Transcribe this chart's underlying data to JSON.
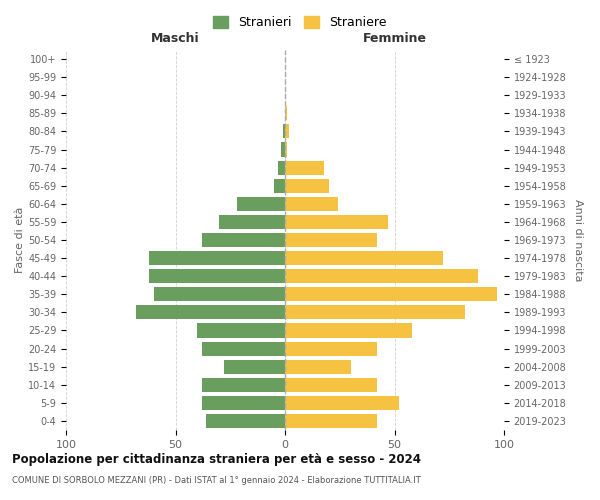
{
  "age_groups": [
    "0-4",
    "5-9",
    "10-14",
    "15-19",
    "20-24",
    "25-29",
    "30-34",
    "35-39",
    "40-44",
    "45-49",
    "50-54",
    "55-59",
    "60-64",
    "65-69",
    "70-74",
    "75-79",
    "80-84",
    "85-89",
    "90-94",
    "95-99",
    "100+"
  ],
  "birth_years": [
    "2019-2023",
    "2014-2018",
    "2009-2013",
    "2004-2008",
    "1999-2003",
    "1994-1998",
    "1989-1993",
    "1984-1988",
    "1979-1983",
    "1974-1978",
    "1969-1973",
    "1964-1968",
    "1959-1963",
    "1954-1958",
    "1949-1953",
    "1944-1948",
    "1939-1943",
    "1934-1938",
    "1929-1933",
    "1924-1928",
    "≤ 1923"
  ],
  "males": [
    36,
    38,
    38,
    28,
    38,
    40,
    68,
    60,
    62,
    62,
    38,
    30,
    22,
    5,
    3,
    2,
    1,
    0,
    0,
    0,
    0
  ],
  "females": [
    42,
    52,
    42,
    30,
    42,
    58,
    82,
    97,
    88,
    72,
    42,
    47,
    24,
    20,
    18,
    1,
    2,
    1,
    0,
    0,
    0
  ],
  "male_color": "#6a9e5e",
  "female_color": "#f5c242",
  "title": "Popolazione per cittadinanza straniera per età e sesso - 2024",
  "subtitle": "COMUNE DI SORBOLO MEZZANI (PR) - Dati ISTAT al 1° gennaio 2024 - Elaborazione TUTTITALIA.IT",
  "xlabel_left": "Maschi",
  "xlabel_right": "Femmine",
  "ylabel_left": "Fasce di età",
  "ylabel_right": "Anni di nascita",
  "legend_male": "Stranieri",
  "legend_female": "Straniere",
  "xlim": 100,
  "background_color": "#ffffff",
  "grid_color": "#cccccc"
}
